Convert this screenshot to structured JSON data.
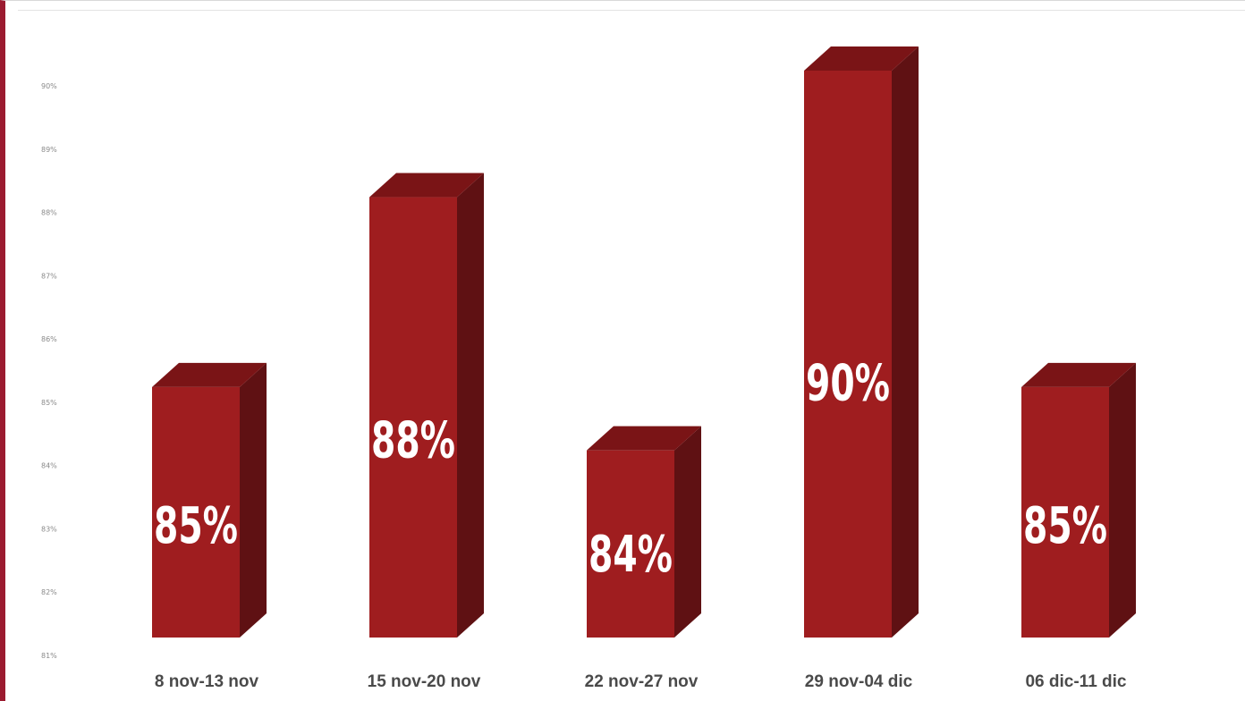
{
  "chart_data": {
    "type": "bar",
    "style": "3d-columns",
    "categories": [
      "8 nov-13 nov",
      "15 nov-20 nov",
      "22 nov-27 nov",
      "29 nov-04 dic",
      "06 dic-11 dic"
    ],
    "values": [
      85,
      88,
      84,
      90,
      85
    ],
    "data_labels": [
      "85%",
      "88%",
      "84%",
      "90%",
      "85%"
    ],
    "ylim": [
      81,
      90
    ],
    "y_tick_labels": [
      "81%",
      "82%",
      "83%",
      "84%",
      "85%",
      "86%",
      "87%",
      "88%",
      "89%",
      "90%"
    ],
    "title": "",
    "xlabel": "",
    "ylabel": "",
    "grid": false,
    "legend": "none",
    "colors": {
      "front": "#9f1d1f",
      "top": "#7a1416",
      "side": "#5f1113",
      "frame_accent": "#9b1b30"
    }
  }
}
